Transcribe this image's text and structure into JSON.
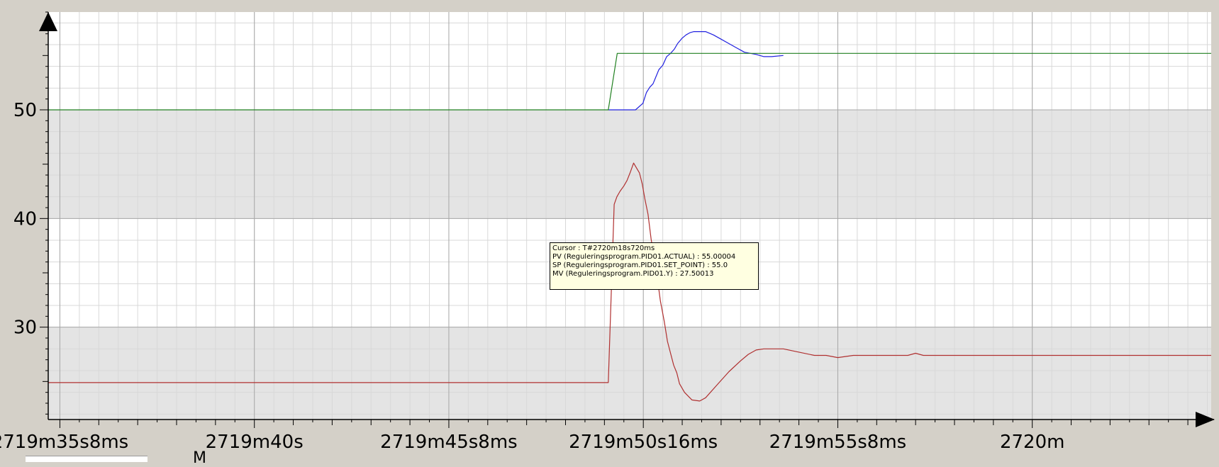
{
  "chart_data": {
    "type": "line",
    "title": "",
    "xlabel": "",
    "ylabel": "",
    "x_tick_labels": [
      "2719m35s8ms",
      "2719m40s",
      "2719m45s8ms",
      "2719m50s16ms",
      "2719m55s8ms",
      "2720m"
    ],
    "x_tick_seconds": [
      35,
      40,
      45,
      50,
      55,
      60
    ],
    "y_tick_labels": [
      "50",
      "40",
      "30"
    ],
    "y_ticks": [
      50,
      40,
      30
    ],
    "xlim": [
      34.7,
      64.6
    ],
    "ylim": [
      21.5,
      59.0
    ],
    "grid": true,
    "legend": "none",
    "bands": [
      [
        40,
        50
      ],
      [
        21.5,
        30
      ]
    ],
    "series": [
      {
        "color": "#2020e0",
        "x": [
          49.1,
          49.8,
          49.99,
          50.08,
          50.17,
          50.25,
          50.32,
          50.4,
          50.5,
          50.6,
          50.7,
          50.8,
          50.88,
          51.0,
          51.1,
          51.2,
          51.3,
          51.44,
          51.6,
          51.8,
          52.0,
          52.2,
          52.4,
          52.6,
          52.9,
          53.1,
          53.3,
          53.6
        ],
        "y": [
          50.0,
          50.0,
          50.6,
          51.6,
          52.1,
          52.4,
          53.0,
          53.7,
          54.1,
          54.9,
          55.2,
          55.6,
          56.1,
          56.6,
          56.9,
          57.1,
          57.2,
          57.2,
          57.2,
          56.9,
          56.5,
          56.1,
          55.7,
          55.3,
          55.1,
          54.9,
          54.9,
          55.0
        ]
      },
      {
        "color": "#208020",
        "x": [
          34.7,
          49.1,
          49.33,
          64.6
        ],
        "y": [
          50.0,
          50.0,
          55.2,
          55.2
        ]
      },
      {
        "color": "#b03030",
        "x": [
          34.7,
          49.1,
          49.25,
          49.32,
          49.4,
          49.5,
          49.58,
          49.66,
          49.75,
          49.8,
          49.9,
          49.97,
          50.04,
          50.12,
          50.2,
          50.32,
          50.44,
          50.54,
          50.62,
          50.7,
          50.78,
          50.86,
          50.93,
          51.06,
          51.25,
          51.45,
          51.6,
          51.9,
          52.2,
          52.5,
          52.7,
          52.9,
          53.1,
          53.3,
          53.6,
          54.0,
          54.4,
          54.7,
          55.0,
          55.4,
          56.8,
          57.0,
          57.2,
          64.6
        ],
        "y": [
          24.9,
          24.9,
          41.3,
          42.0,
          42.5,
          43.0,
          43.5,
          44.2,
          45.1,
          44.8,
          44.2,
          43.2,
          41.8,
          40.4,
          38.1,
          35.6,
          32.4,
          30.5,
          28.7,
          27.6,
          26.5,
          25.8,
          24.8,
          24.0,
          23.3,
          23.2,
          23.5,
          24.7,
          25.9,
          26.9,
          27.5,
          27.9,
          28.0,
          28.0,
          28.0,
          27.7,
          27.4,
          27.4,
          27.2,
          27.4,
          27.4,
          27.6,
          27.4,
          27.4
        ]
      }
    ]
  },
  "tooltip": {
    "cursor": "Cursor : T#2720m18s720ms",
    "pv": "PV (Reguleringsprogram.PID01.ACTUAL) : 55.00004",
    "sp": "SP (Reguleringsprogram.PID01.SET_POINT) : 55.0",
    "mv": "MV (Reguleringsprogram.PID01.Y) : 27.50013"
  },
  "bottom_label": "M"
}
